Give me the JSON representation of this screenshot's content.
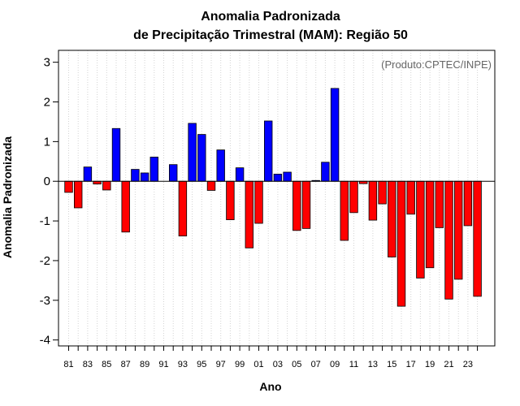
{
  "chart_data": {
    "type": "bar",
    "title_line1": "Anomalia Padronizada",
    "title_line2": "de Precipitação Trimestral (MAM): Região 50",
    "xlabel": "Ano",
    "ylabel": "Anomalia Padronizada",
    "note": "(Produto:CPTEC/INPE)",
    "ylim": [
      -4.15,
      3.3
    ],
    "yticks": [
      -4,
      -3,
      -2,
      -1,
      0,
      1,
      2,
      3
    ],
    "ytick_labels": [
      "-4",
      "-3",
      "-2",
      "-1",
      "0",
      "1",
      "2",
      "3"
    ],
    "grid": "vertical dotted",
    "colors": {
      "positive": "#0000ff",
      "negative": "#ff0000",
      "edge": "#000000"
    },
    "xtick_labels": [
      "81",
      "83",
      "85",
      "87",
      "89",
      "91",
      "93",
      "95",
      "97",
      "99",
      "01",
      "03",
      "05",
      "07",
      "09",
      "11",
      "13",
      "15",
      "17",
      "19",
      "21",
      "23"
    ],
    "categories": [
      "1981",
      "1982",
      "1983",
      "1984",
      "1985",
      "1986",
      "1987",
      "1988",
      "1989",
      "1990",
      "1991",
      "1992",
      "1993",
      "1994",
      "1995",
      "1996",
      "1997",
      "1998",
      "1999",
      "2000",
      "2001",
      "2002",
      "2003",
      "2004",
      "2005",
      "2006",
      "2007",
      "2008",
      "2009",
      "2010",
      "2011",
      "2012",
      "2013",
      "2014",
      "2015",
      "2016",
      "2017",
      "2018",
      "2019",
      "2020",
      "2021",
      "2022",
      "2023",
      "2024"
    ],
    "values": [
      -0.28,
      -0.67,
      0.36,
      -0.07,
      -0.22,
      1.33,
      -1.28,
      0.3,
      0.21,
      0.61,
      0.0,
      0.42,
      -1.38,
      1.46,
      1.18,
      -0.23,
      0.79,
      -0.97,
      0.34,
      -1.68,
      -1.06,
      1.52,
      0.18,
      0.23,
      -1.24,
      -1.19,
      0.02,
      0.48,
      2.34,
      -1.49,
      -0.79,
      -0.06,
      -0.98,
      -0.57,
      -1.91,
      -3.15,
      -0.83,
      -2.44,
      -2.18,
      -1.17,
      -2.97,
      -2.47,
      -1.12,
      -2.9
    ]
  }
}
